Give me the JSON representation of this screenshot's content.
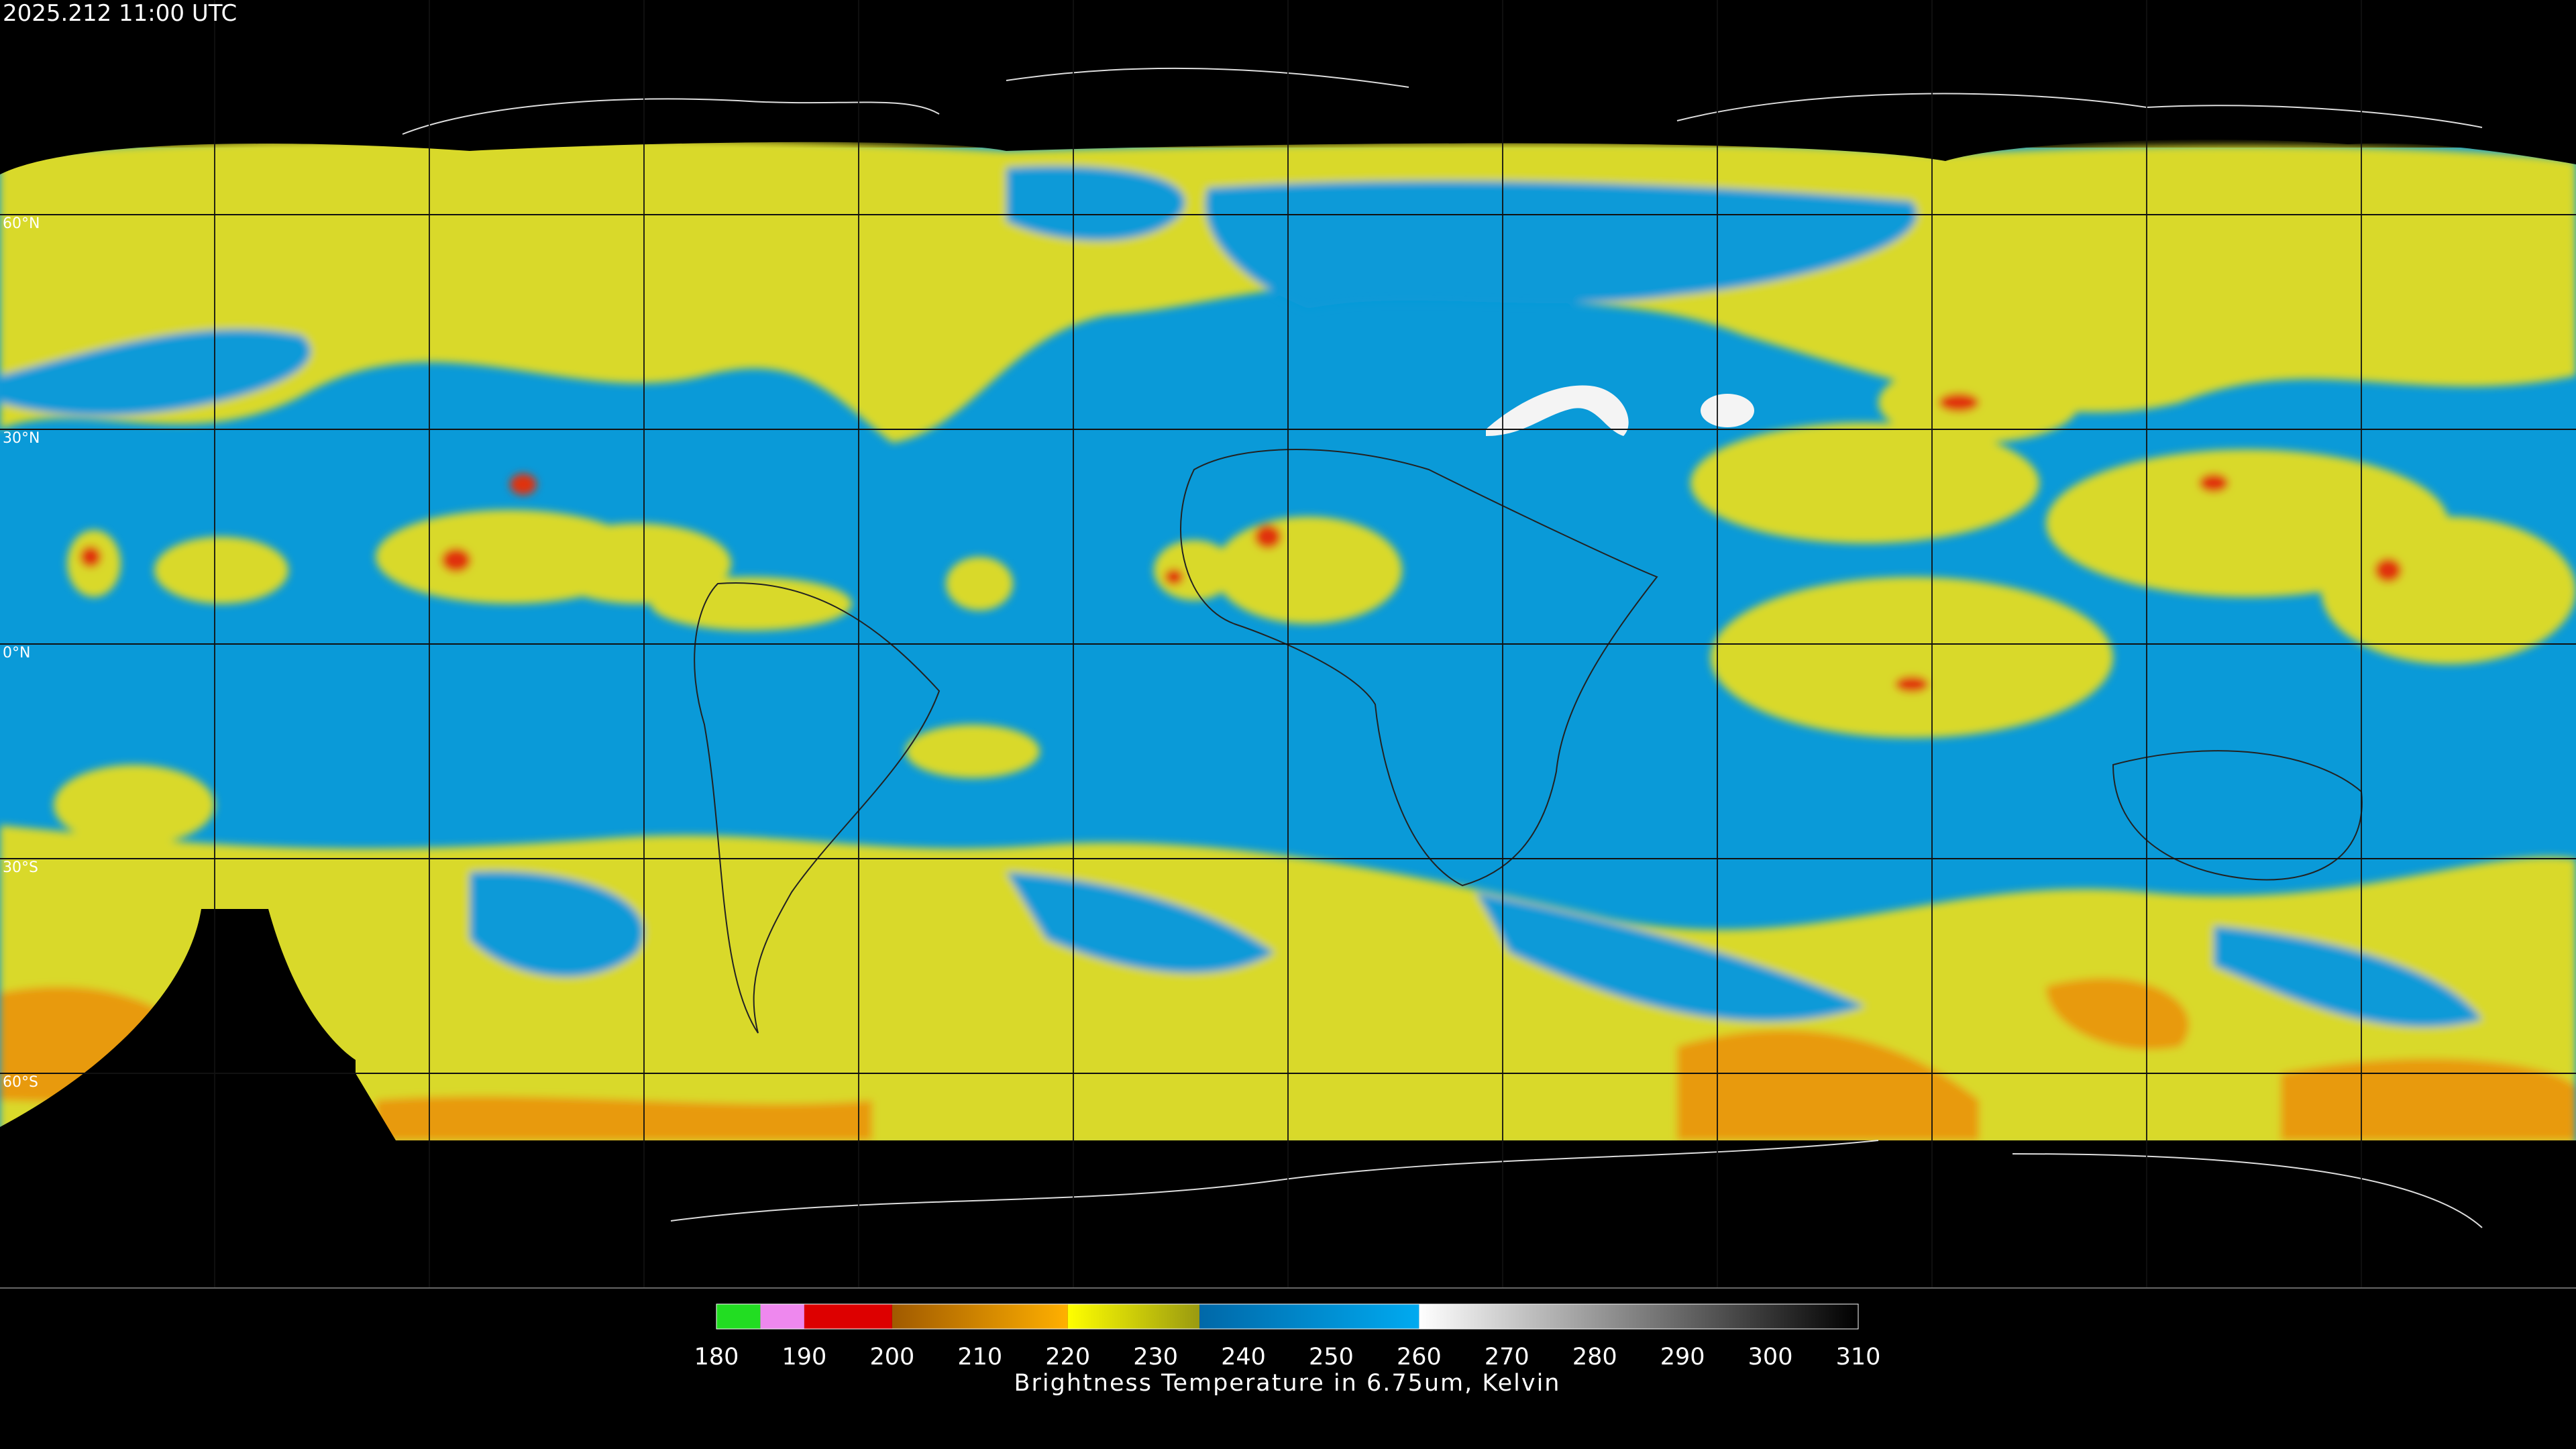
{
  "timestamp": "2025.212 11:00 UTC",
  "grid_labels": [
    {
      "lat": 60,
      "label": "60°N"
    },
    {
      "lat": 30,
      "label": "30°N"
    },
    {
      "lat": 0,
      "label": "0°N"
    },
    {
      "lat": -30,
      "label": "30°S"
    },
    {
      "lat": -60,
      "label": "60°S"
    }
  ],
  "colorbar": {
    "label": "Brightness Temperature in 6.75um, Kelvin",
    "lim": [
      180,
      310
    ],
    "ticks": [
      180,
      190,
      200,
      210,
      220,
      230,
      240,
      250,
      260,
      270,
      280,
      290,
      300,
      310
    ],
    "segments": [
      {
        "from": 180,
        "to": 185,
        "colors": [
          "#22dd22",
          "#22dd22"
        ]
      },
      {
        "from": 185,
        "to": 190,
        "colors": [
          "#ee88ee",
          "#ee88ee"
        ]
      },
      {
        "from": 190,
        "to": 200,
        "colors": [
          "#dd0000",
          "#dd0000"
        ]
      },
      {
        "from": 200,
        "to": 220,
        "colors": [
          "#a05a00",
          "#ffb000"
        ]
      },
      {
        "from": 220,
        "to": 235,
        "colors": [
          "#ffff00",
          "#9a9a10"
        ]
      },
      {
        "from": 235,
        "to": 260,
        "colors": [
          "#0068a8",
          "#00aaf0"
        ]
      },
      {
        "from": 260,
        "to": 310,
        "colors": [
          "#ffffff",
          "#000000"
        ]
      }
    ]
  }
}
